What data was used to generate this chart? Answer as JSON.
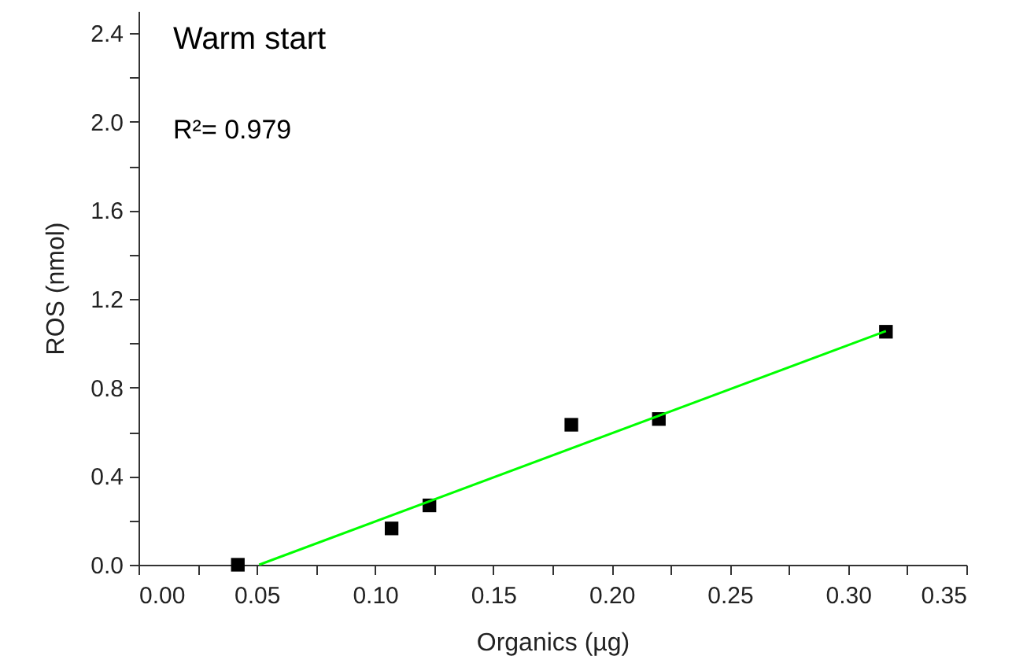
{
  "chart_data": {
    "type": "scatter",
    "xlabel": "Organics (µg)",
    "ylabel": "ROS (nmol)",
    "annotations": [
      "Warm start",
      "R²= 0.979"
    ],
    "xlim": [
      0,
      0.35
    ],
    "ylim": [
      0,
      2.5
    ],
    "xticks": [
      {
        "value": 0,
        "label": "0.00"
      },
      {
        "value": 0.025,
        "label": null
      },
      0.05,
      {
        "value": 0.075,
        "label": null
      },
      {
        "value": 0.1,
        "label": "0.10"
      },
      {
        "value": 0.125,
        "label": null
      },
      0.15,
      {
        "value": 0.175,
        "label": null
      },
      {
        "value": 0.2,
        "label": "0.20"
      },
      {
        "value": 0.225,
        "label": null
      },
      0.25,
      {
        "value": 0.275,
        "label": null
      },
      {
        "value": 0.3,
        "label": "0.30"
      },
      {
        "value": 0.325,
        "label": null
      },
      0.35
    ],
    "yticks": [
      {
        "value": 0,
        "label": "0.0"
      },
      {
        "value": 0.2,
        "label": null
      },
      0.4,
      {
        "value": 0.6,
        "label": null
      },
      0.8,
      {
        "value": 1.0,
        "label": null
      },
      1.2,
      {
        "value": 1.4,
        "label": null
      },
      1.6,
      {
        "value": 1.8,
        "label": null
      },
      {
        "value": 2,
        "label": "2.0"
      },
      {
        "value": 2.2,
        "label": null
      },
      2.4
    ],
    "grid": false,
    "series": [
      {
        "marker": "square",
        "color": "#000000",
        "x": [
          0.042,
          0.107,
          0.123,
          0.183,
          0.22,
          0.316
        ],
        "values": [
          0.0,
          0.164,
          0.268,
          0.632,
          0.658,
          1.052
        ]
      },
      {
        "type": "line",
        "color": "#00ff00",
        "line_style": "solid",
        "marker": "none",
        "x": [
          0.051,
          0.316
        ],
        "values": [
          0.0,
          1.055
        ]
      }
    ]
  }
}
